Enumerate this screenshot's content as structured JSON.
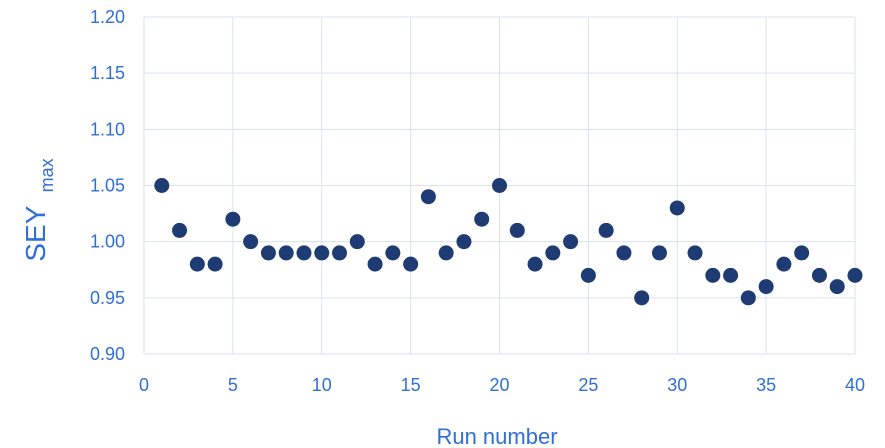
{
  "chart_data": {
    "type": "scatter",
    "xlabel": "Run number",
    "ylabel": "SEY",
    "ylabel_sub": "max",
    "xlim": [
      0,
      40
    ],
    "ylim": [
      0.9,
      1.2
    ],
    "x_ticks": [
      0,
      5,
      10,
      15,
      20,
      25,
      30,
      35,
      40
    ],
    "y_ticks": [
      0.9,
      0.95,
      1.0,
      1.05,
      1.1,
      1.15,
      1.2
    ],
    "x_tick_labels": [
      "0",
      "5",
      "10",
      "15",
      "20",
      "25",
      "30",
      "35",
      "40"
    ],
    "y_tick_labels": [
      "0.90",
      "0.95",
      "1.00",
      "1.05",
      "1.10",
      "1.15",
      "1.20"
    ],
    "grid": true,
    "series": [
      {
        "x": [
          1,
          2,
          3,
          4,
          5,
          6,
          7,
          8,
          9,
          10,
          11,
          12,
          13,
          14,
          15,
          16,
          17,
          18,
          19,
          20,
          21,
          22,
          23,
          24,
          25,
          26,
          27,
          28,
          29,
          30,
          31,
          32,
          33,
          34,
          35,
          36,
          37,
          38,
          39,
          40
        ],
        "y": [
          1.05,
          1.01,
          0.98,
          0.98,
          1.02,
          1.0,
          0.99,
          0.99,
          0.99,
          0.99,
          0.99,
          1.0,
          0.98,
          0.99,
          0.98,
          1.04,
          0.99,
          1.0,
          1.02,
          1.05,
          1.01,
          0.98,
          0.99,
          1.0,
          0.97,
          1.01,
          0.99,
          0.95,
          0.99,
          1.03,
          0.99,
          0.97,
          0.97,
          0.95,
          0.96,
          0.98,
          0.99,
          0.97,
          0.96,
          0.97
        ]
      }
    ],
    "colors": {
      "marker": "#1f3b73",
      "text": "#2f6fd6",
      "grid": "#d9e1ec"
    }
  }
}
